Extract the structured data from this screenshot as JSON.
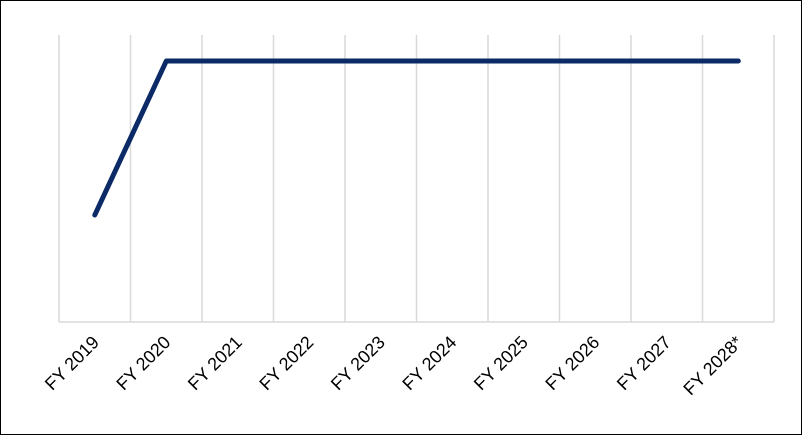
{
  "chart_data": {
    "type": "line",
    "categories": [
      "FY 2019",
      "FY 2020",
      "FY 2021",
      "FY 2022",
      "FY 2023",
      "FY 2024",
      "FY 2025",
      "FY 2026",
      "FY 2027",
      "FY 2028*"
    ],
    "series": [
      {
        "values": [
          0.41,
          1.0,
          1.0,
          1.0,
          1.0,
          1.0,
          1.0,
          1.0,
          1.0,
          1.0
        ]
      }
    ],
    "ylim": [
      0,
      1.0
    ],
    "grid": "vertical",
    "legend": "none",
    "line_color": "#0B2A66",
    "grid_color": "#D9D9D9",
    "axis_color": "#D9D9D9",
    "label_color": "#000000"
  }
}
